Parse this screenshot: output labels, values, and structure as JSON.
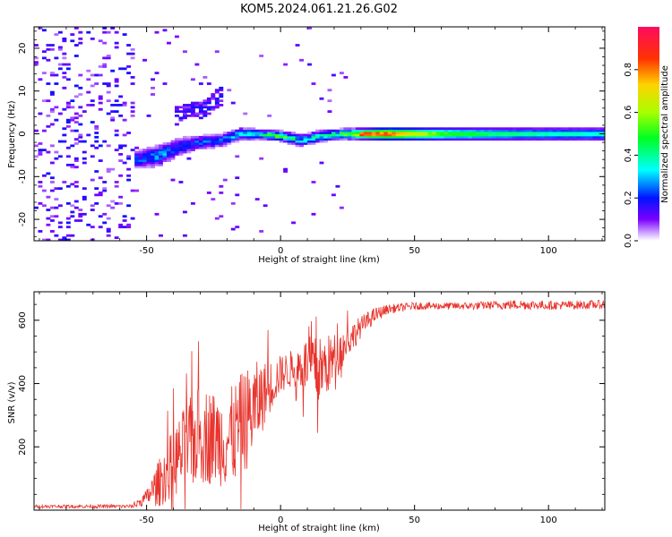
{
  "title": "KOM5.2024.061.21.26.G02",
  "colors": {
    "line": "#e8332c",
    "axis": "#000000",
    "background": "#ffffff"
  },
  "chart_data": [
    {
      "type": "heatmap",
      "xlabel": "Height of straight line (km)",
      "ylabel": "Frequency (Hz)",
      "xlim": [
        -92,
        121
      ],
      "ylim": [
        -25,
        25
      ],
      "x_ticks": [
        -50,
        0,
        50,
        100
      ],
      "y_ticks": [
        -20,
        -10,
        0,
        10,
        20
      ],
      "colorbar": {
        "label": "Normalized spectral amplitude",
        "range": [
          0,
          1
        ],
        "ticks": [
          "0.0",
          "0.2",
          "0.4",
          "0.6",
          "0.8"
        ],
        "colormap": "gist_rainbow_r"
      },
      "features": {
        "noise_region_x": [
          -92,
          -54
        ],
        "noise_amplitude": [
          0.05,
          0.2
        ],
        "strong_band": {
          "x": [
            -53,
            -45,
            -38,
            -30,
            -22,
            -15,
            -8,
            0,
            8,
            15,
            22,
            30,
            40,
            60,
            80,
            100,
            121
          ],
          "freq_center": [
            -6,
            -5,
            -3,
            -2,
            -1.5,
            0,
            0,
            -0.5,
            -1.5,
            -0.5,
            0,
            0,
            0,
            0,
            0,
            0,
            0
          ],
          "half_width_hz": [
            1.5,
            1.8,
            1.5,
            1.2,
            1,
            1,
            0.8,
            0.8,
            1,
            0.9,
            0.8,
            0.8,
            1,
            1,
            1,
            1,
            1
          ],
          "amplitude": [
            0.25,
            0.3,
            0.25,
            0.25,
            0.3,
            0.35,
            0.4,
            0.6,
            0.35,
            0.4,
            0.5,
            0.9,
            0.85,
            0.55,
            0.45,
            0.4,
            0.38
          ]
        },
        "arc_feature": {
          "x": [
            -40,
            -34,
            -28,
            -22
          ],
          "freq_center": [
            4,
            5,
            6,
            9
          ],
          "amplitude": 0.15
        }
      }
    },
    {
      "type": "line",
      "xlabel": "Height of straight line (km)",
      "ylabel": "SNR (v/v)",
      "xlim": [
        -92,
        121
      ],
      "ylim": [
        0,
        690
      ],
      "x_ticks": [
        -50,
        0,
        50,
        100
      ],
      "y_ticks": [
        200,
        400,
        600
      ],
      "series": [
        {
          "envelope_x": [
            -92,
            -55,
            -50,
            -45,
            -40,
            -35,
            -30,
            -25,
            -20,
            -15,
            -10,
            -5,
            0,
            5,
            10,
            15,
            20,
            25,
            30,
            35,
            40,
            50,
            60,
            70,
            80,
            90,
            100,
            110,
            121
          ],
          "envelope_mean": [
            12,
            12,
            40,
            90,
            150,
            200,
            240,
            230,
            220,
            260,
            320,
            380,
            430,
            450,
            460,
            440,
            480,
            530,
            580,
            615,
            635,
            645,
            645,
            645,
            648,
            650,
            647,
            648,
            650
          ],
          "envelope_spread": [
            5,
            6,
            25,
            80,
            110,
            140,
            160,
            150,
            150,
            170,
            150,
            90,
            60,
            60,
            90,
            110,
            80,
            50,
            35,
            25,
            15,
            12,
            12,
            12,
            14,
            16,
            14,
            14,
            14
          ]
        }
      ]
    }
  ]
}
